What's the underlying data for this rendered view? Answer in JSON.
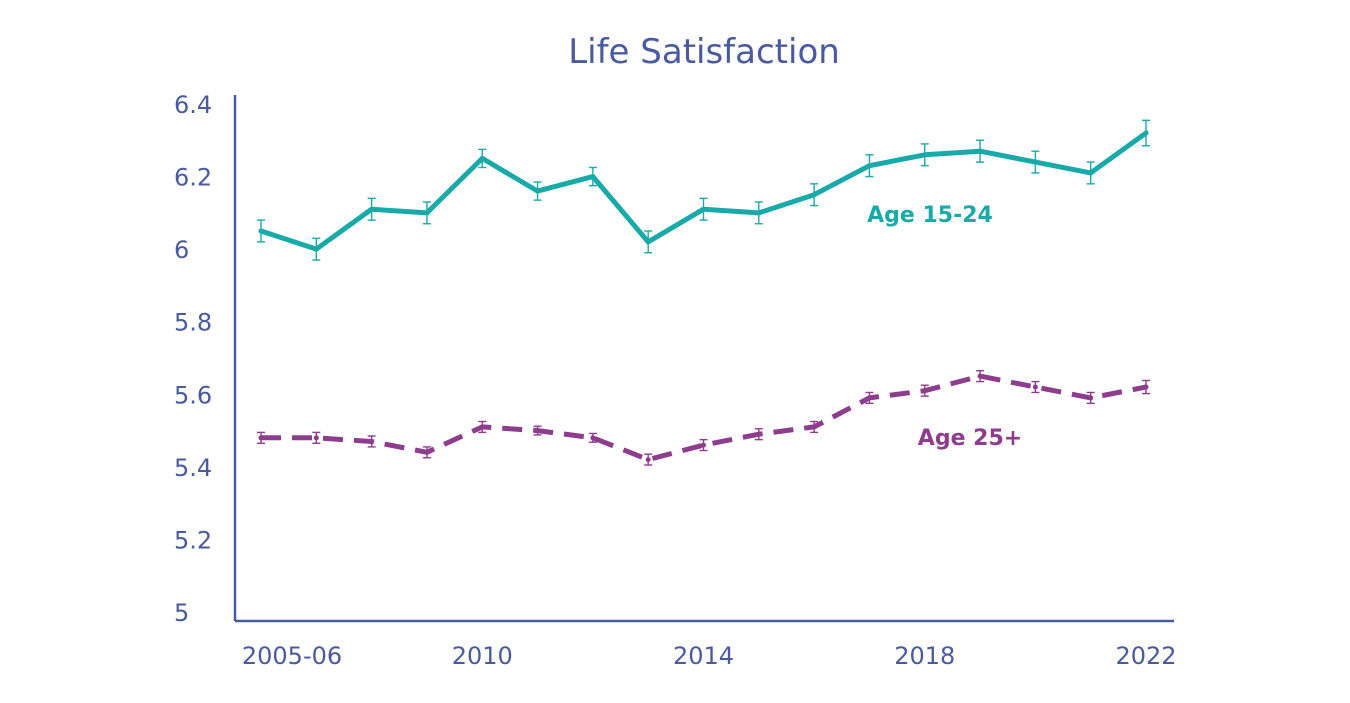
{
  "chart_data": {
    "type": "line",
    "title": "Life Satisfaction",
    "xlabel": "",
    "ylabel": "",
    "ylim": [
      5,
      6.4
    ],
    "yticks": [
      {
        "value": 5,
        "label": "5"
      },
      {
        "value": 5.2,
        "label": "5.2"
      },
      {
        "value": 5.4,
        "label": "5.4"
      },
      {
        "value": 5.6,
        "label": "5.6"
      },
      {
        "value": 5.8,
        "label": "5.8"
      },
      {
        "value": 6,
        "label": "6"
      },
      {
        "value": 6.2,
        "label": "6.2"
      },
      {
        "value": 6.4,
        "label": "6.4"
      }
    ],
    "x": [
      "2005-06",
      "2007",
      "2008",
      "2009",
      "2010",
      "2011",
      "2012",
      "2013",
      "2014",
      "2015",
      "2016",
      "2017",
      "2018",
      "2019",
      "2020",
      "2021",
      "2022"
    ],
    "xtick_labels": [
      "2005-06",
      "2010",
      "2014",
      "2018",
      "2022"
    ],
    "grid": false,
    "series": [
      {
        "name": "Age 15-24",
        "color": "#17aaa8",
        "style": "solid",
        "values": [
          6.05,
          6.0,
          6.11,
          6.1,
          6.25,
          6.16,
          6.2,
          6.02,
          6.11,
          6.1,
          6.15,
          6.23,
          6.26,
          6.27,
          6.24,
          6.21,
          6.32
        ],
        "error": [
          0.03,
          0.03,
          0.03,
          0.03,
          0.025,
          0.025,
          0.025,
          0.03,
          0.03,
          0.03,
          0.03,
          0.03,
          0.03,
          0.03,
          0.03,
          0.03,
          0.035
        ]
      },
      {
        "name": "Age 25+",
        "color": "#8e3c8e",
        "style": "dashed",
        "values": [
          5.48,
          5.48,
          5.47,
          5.44,
          5.51,
          5.5,
          5.48,
          5.42,
          5.46,
          5.49,
          5.51,
          5.59,
          5.61,
          5.65,
          5.62,
          5.59,
          5.62
        ],
        "error": [
          0.015,
          0.015,
          0.015,
          0.015,
          0.015,
          0.012,
          0.012,
          0.015,
          0.015,
          0.015,
          0.015,
          0.015,
          0.015,
          0.015,
          0.015,
          0.015,
          0.018
        ]
      }
    ],
    "axis_color": "#4a5aa0"
  }
}
